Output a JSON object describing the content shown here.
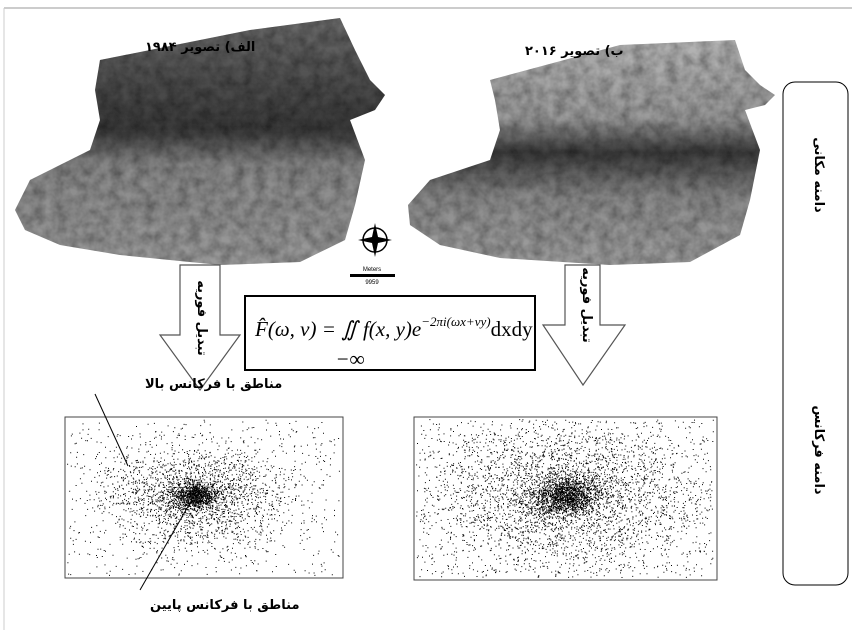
{
  "panels": {
    "left_title": "الف) تصویر ۱۹۸۴",
    "right_title": "ب) تصویر ۲۰۱۶"
  },
  "domains": {
    "spatial": "دامنه مکانی",
    "frequency": "دامنه فرکانس"
  },
  "transform_labels": [
    "تبدیل فوریه",
    "تبدیل فوریه"
  ],
  "scale": {
    "unit": "Meters",
    "distance": "9959"
  },
  "formula": {
    "lhs": "F̂(ω, v) = ∬ f(x, y)e",
    "exponent": "−2πi(ωx+vy)",
    "differential": "dxdy",
    "lower_limit": "−∞"
  },
  "annotations": {
    "high": "مناطق با فرکانس بالا",
    "low": "مناطق با فرکانس پایین"
  }
}
